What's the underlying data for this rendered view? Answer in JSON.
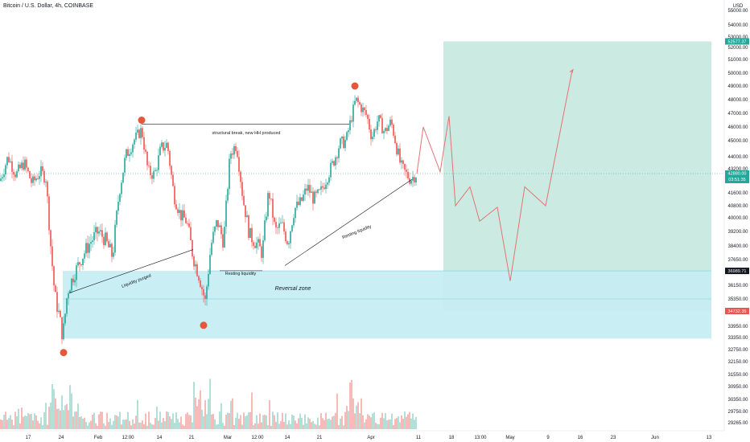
{
  "header": {
    "title": "Bitcoin / U.S. Dollar, 4h, COINBASE",
    "currency": "USD"
  },
  "chart_data": {
    "type": "candlestick",
    "symbol": "Bitcoin / U.S. Dollar",
    "timeframe": "4h",
    "exchange": "COINBASE",
    "y_ticks": [
      55000,
      54000,
      53000,
      52000,
      51000,
      50000,
      49000,
      48000,
      47000,
      46000,
      45000,
      44000,
      43200,
      41600,
      40800,
      40000,
      39200,
      38400,
      37650,
      36150,
      35350,
      33950,
      33350,
      32750,
      32150,
      31550,
      30950,
      30350,
      29750,
      29265
    ],
    "x_ticks": [
      {
        "label": "17",
        "x": 35
      },
      {
        "label": "24",
        "x": 76
      },
      {
        "label": "Feb",
        "x": 122
      },
      {
        "label": "12:00",
        "x": 159
      },
      {
        "label": "14",
        "x": 198
      },
      {
        "label": "21",
        "x": 238
      },
      {
        "label": "Mar",
        "x": 283
      },
      {
        "label": "12:00",
        "x": 320
      },
      {
        "label": "14",
        "x": 357
      },
      {
        "label": "21",
        "x": 397
      },
      {
        "label": "Apr",
        "x": 461
      },
      {
        "label": "11",
        "x": 520
      },
      {
        "label": "18",
        "x": 561
      },
      {
        "label": "13:00",
        "x": 597
      },
      {
        "label": "May",
        "x": 634
      },
      {
        "label": "9",
        "x": 681
      },
      {
        "label": "16",
        "x": 721
      },
      {
        "label": "23",
        "x": 762
      },
      {
        "label": "Jun",
        "x": 814
      },
      {
        "label": "13",
        "x": 881
      }
    ],
    "price_path": [
      {
        "x": 0,
        "price": 42400
      },
      {
        "x": 10,
        "price": 44000
      },
      {
        "x": 20,
        "price": 42800
      },
      {
        "x": 30,
        "price": 43600
      },
      {
        "x": 40,
        "price": 42200
      },
      {
        "x": 50,
        "price": 43000
      },
      {
        "x": 57,
        "price": 42600
      },
      {
        "x": 62,
        "price": 39000
      },
      {
        "x": 68,
        "price": 35600
      },
      {
        "x": 73,
        "price": 34600
      },
      {
        "x": 78,
        "price": 33400
      },
      {
        "x": 84,
        "price": 35800
      },
      {
        "x": 92,
        "price": 36800
      },
      {
        "x": 102,
        "price": 37800
      },
      {
        "x": 112,
        "price": 38600
      },
      {
        "x": 122,
        "price": 39200
      },
      {
        "x": 130,
        "price": 38800
      },
      {
        "x": 140,
        "price": 37800
      },
      {
        "x": 148,
        "price": 41600
      },
      {
        "x": 156,
        "price": 44000
      },
      {
        "x": 166,
        "price": 45000
      },
      {
        "x": 176,
        "price": 45800
      },
      {
        "x": 184,
        "price": 43000
      },
      {
        "x": 192,
        "price": 42800
      },
      {
        "x": 200,
        "price": 44500
      },
      {
        "x": 208,
        "price": 44800
      },
      {
        "x": 216,
        "price": 41500
      },
      {
        "x": 224,
        "price": 40200
      },
      {
        "x": 232,
        "price": 39800
      },
      {
        "x": 240,
        "price": 37800
      },
      {
        "x": 248,
        "price": 36600
      },
      {
        "x": 255,
        "price": 35200
      },
      {
        "x": 262,
        "price": 38400
      },
      {
        "x": 270,
        "price": 39800
      },
      {
        "x": 278,
        "price": 38600
      },
      {
        "x": 286,
        "price": 44200
      },
      {
        "x": 294,
        "price": 44800
      },
      {
        "x": 302,
        "price": 41200
      },
      {
        "x": 310,
        "price": 39000
      },
      {
        "x": 318,
        "price": 38600
      },
      {
        "x": 326,
        "price": 38000
      },
      {
        "x": 334,
        "price": 41800
      },
      {
        "x": 342,
        "price": 39200
      },
      {
        "x": 350,
        "price": 39600
      },
      {
        "x": 358,
        "price": 38600
      },
      {
        "x": 366,
        "price": 40600
      },
      {
        "x": 374,
        "price": 41000
      },
      {
        "x": 382,
        "price": 42000
      },
      {
        "x": 390,
        "price": 41200
      },
      {
        "x": 398,
        "price": 41600
      },
      {
        "x": 406,
        "price": 42600
      },
      {
        "x": 414,
        "price": 43600
      },
      {
        "x": 422,
        "price": 44800
      },
      {
        "x": 430,
        "price": 45000
      },
      {
        "x": 436,
        "price": 46500
      },
      {
        "x": 442,
        "price": 48000
      },
      {
        "x": 448,
        "price": 47500
      },
      {
        "x": 456,
        "price": 46800
      },
      {
        "x": 462,
        "price": 45200
      },
      {
        "x": 470,
        "price": 46600
      },
      {
        "x": 478,
        "price": 45600
      },
      {
        "x": 486,
        "price": 46400
      },
      {
        "x": 492,
        "price": 44800
      },
      {
        "x": 498,
        "price": 43400
      },
      {
        "x": 504,
        "price": 42900
      },
      {
        "x": 510,
        "price": 42500
      },
      {
        "x": 518,
        "price": 42880
      }
    ],
    "projection_path": [
      {
        "x": 518,
        "price": 42880
      },
      {
        "x": 526,
        "price": 46000
      },
      {
        "x": 547,
        "price": 43000
      },
      {
        "x": 558,
        "price": 46800
      },
      {
        "x": 566,
        "price": 40800
      },
      {
        "x": 584,
        "price": 42000
      },
      {
        "x": 596,
        "price": 39800
      },
      {
        "x": 618,
        "price": 40700
      },
      {
        "x": 634,
        "price": 36400
      },
      {
        "x": 652,
        "price": 42000
      },
      {
        "x": 678,
        "price": 40800
      },
      {
        "x": 711,
        "price": 50200
      }
    ],
    "swing_points": [
      {
        "x": 176,
        "price": 46500
      },
      {
        "x": 441,
        "price": 49000
      },
      {
        "x": 253,
        "price": 34000
      },
      {
        "x": 79,
        "price": 32600
      }
    ],
    "zones": [
      {
        "name": "target",
        "from": 36989.71,
        "to": 52577.37,
        "x_start": 551,
        "x_end": 884
      },
      {
        "name": "stop",
        "from": 34732.35,
        "to": 36989.71,
        "x_start": 551,
        "x_end": 884
      },
      {
        "name": "reversal",
        "from": 33300,
        "to": 36989.71,
        "x_start": 78,
        "x_end": 884
      }
    ],
    "price_labels": {
      "target": "52577.37",
      "current": "42880.00",
      "countdown": "03:51:35",
      "entry": "36989.71",
      "stop": "34732.35"
    },
    "annotations": {
      "structural_break": "structural break, new HH produced",
      "liquidity_purged": "Liquidity purged",
      "resting_liquidity_1": "Resting liquidity",
      "resting_liquidity_2": "Resting liquidity",
      "reversal_zone": "Reversal zone"
    },
    "colors": {
      "target_fill": "#c5e8df",
      "stop_fill": "#c9c9cc",
      "zone_fill": "#c6eef4",
      "green_badge": "#26a69a",
      "red_badge": "#ef5350",
      "dark_badge": "#131722",
      "swing_dot": "#e4573d",
      "price_line": "#2aa198",
      "projection_line": "#e57373"
    }
  }
}
